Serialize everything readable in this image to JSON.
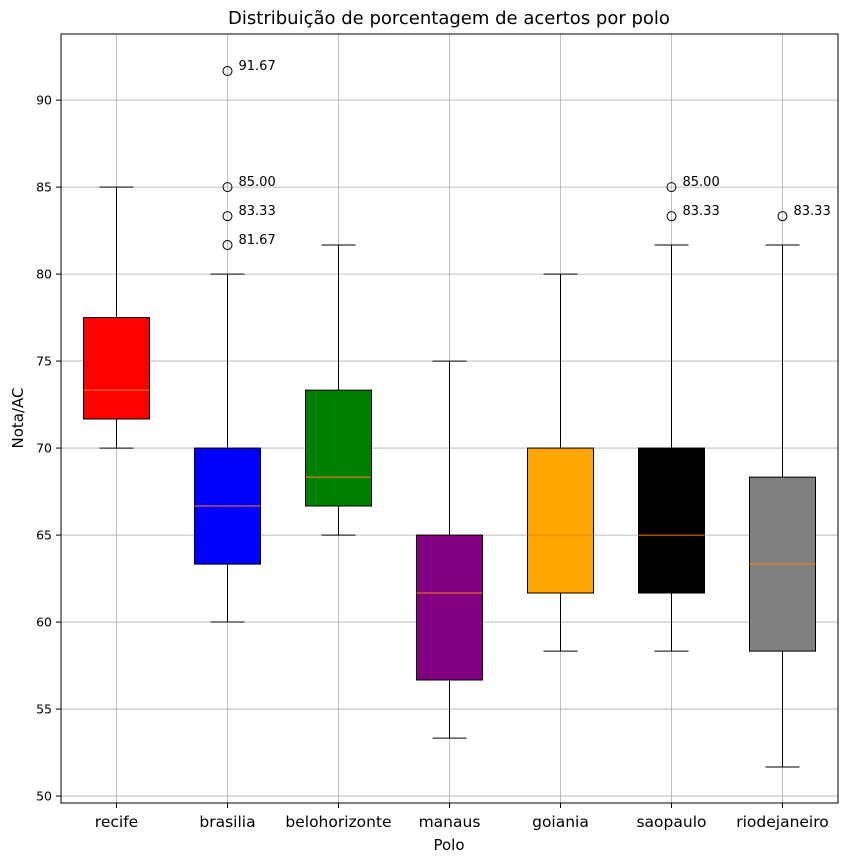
{
  "chart_data": {
    "type": "boxplot",
    "title": "Distribuição de porcentagem de acertos por polo",
    "xlabel": "Polo",
    "ylabel": "Nota/AC",
    "ylim": [
      49.6,
      93.8
    ],
    "yticks": [
      50,
      55,
      60,
      65,
      70,
      75,
      80,
      85,
      90
    ],
    "ytick_labels": [
      "50",
      "55",
      "60",
      "65",
      "70",
      "75",
      "80",
      "85",
      "90"
    ],
    "grid": true,
    "median_color": "#ff7f0e",
    "categories": [
      "recife",
      "brasilia",
      "belohorizonte",
      "manaus",
      "goiania",
      "saopaulo",
      "riodejaneiro"
    ],
    "series": [
      {
        "name": "recife",
        "color": "#ff0000",
        "whisker_low": 70.0,
        "q1": 71.67,
        "median": 73.33,
        "q3": 77.5,
        "whisker_high": 85.0,
        "outliers": [],
        "outlier_labels": []
      },
      {
        "name": "brasilia",
        "color": "#0000ff",
        "whisker_low": 60.0,
        "q1": 63.33,
        "median": 66.67,
        "q3": 70.0,
        "whisker_high": 80.0,
        "outliers": [
          91.67,
          85.0,
          83.33,
          81.67
        ],
        "outlier_labels": [
          "91.67",
          "85.00",
          "83.33",
          "81.67"
        ]
      },
      {
        "name": "belohorizonte",
        "color": "#008000",
        "whisker_low": 65.0,
        "q1": 66.67,
        "median": 68.33,
        "q3": 73.33,
        "whisker_high": 81.67,
        "outliers": [],
        "outlier_labels": []
      },
      {
        "name": "manaus",
        "color": "#800080",
        "whisker_low": 53.33,
        "q1": 56.67,
        "median": 61.67,
        "q3": 65.0,
        "whisker_high": 75.0,
        "outliers": [],
        "outlier_labels": []
      },
      {
        "name": "goiania",
        "color": "#ffa500",
        "whisker_low": 58.33,
        "q1": 61.67,
        "median": 65.0,
        "q3": 70.0,
        "whisker_high": 80.0,
        "outliers": [],
        "outlier_labels": []
      },
      {
        "name": "saopaulo",
        "color": "#000000",
        "whisker_low": 58.33,
        "q1": 61.67,
        "median": 65.0,
        "q3": 70.0,
        "whisker_high": 81.67,
        "outliers": [
          85.0,
          83.33
        ],
        "outlier_labels": [
          "85.00",
          "83.33"
        ]
      },
      {
        "name": "riodejaneiro",
        "color": "#808080",
        "whisker_low": 51.67,
        "q1": 58.33,
        "median": 63.33,
        "q3": 68.33,
        "whisker_high": 81.67,
        "outliers": [
          83.33
        ],
        "outlier_labels": [
          "83.33"
        ]
      }
    ]
  }
}
